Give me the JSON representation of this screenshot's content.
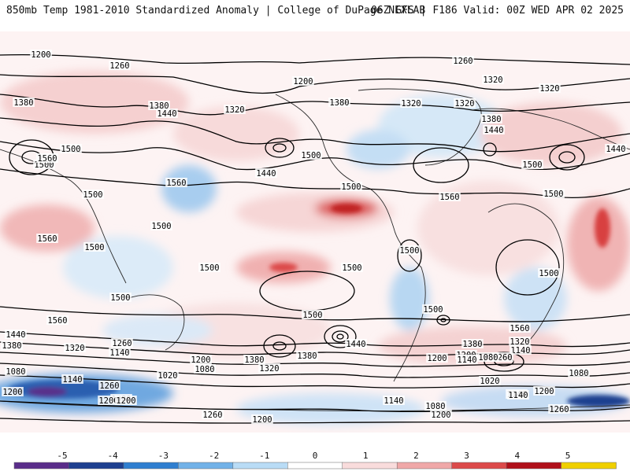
{
  "header": {
    "title": "850mb Temp 1981-2010 Standardized Anomaly | College of DuPage NEXLAB",
    "run_info": "06Z GFS | F186 Valid: 00Z WED APR 02 2025"
  },
  "contour_labels": [
    "1200",
    "1260",
    "1260",
    "1200",
    "1320",
    "1320",
    "1320",
    "1380",
    "1320",
    "1380",
    "1440",
    "1380",
    "1320",
    "1380",
    "1440",
    "1500",
    "1500",
    "1560",
    "1440",
    "1560",
    "1500",
    "1500",
    "1560",
    "1440",
    "1500",
    "1500",
    "1500",
    "1560",
    "1500",
    "1500",
    "1500",
    "1500",
    "1500",
    "1500",
    "1500",
    "1500",
    "1560",
    "1440",
    "1380",
    "1320",
    "1260",
    "1140",
    "1200",
    "1080",
    "1380",
    "1320",
    "1080",
    "1140",
    "1260",
    "1020",
    "1200",
    "1140",
    "1260",
    "1140",
    "1200",
    "1080",
    "1200",
    "1380",
    "1500",
    "1560",
    "1440",
    "1380",
    "1320",
    "1200",
    "1080",
    "1020",
    "1140",
    "1200",
    "1260",
    "1080",
    "1140",
    "1080",
    "1200",
    "1260",
    "1200",
    "1140",
    "1200"
  ],
  "colorbar": {
    "ticks": [
      "-5",
      "-4",
      "-3",
      "-2",
      "-1",
      "0",
      "1",
      "2",
      "3",
      "4",
      "5"
    ],
    "colors": [
      "#5a2d8a",
      "#1e3f8f",
      "#2f7fd0",
      "#72b2e8",
      "#b9dcf6",
      "#ffffff",
      "#f9dcdc",
      "#f0a8a8",
      "#dc4a4a",
      "#b0101a",
      "#f0d000"
    ]
  },
  "style": {
    "ocean": "#ffffff",
    "contour": "#000000"
  }
}
